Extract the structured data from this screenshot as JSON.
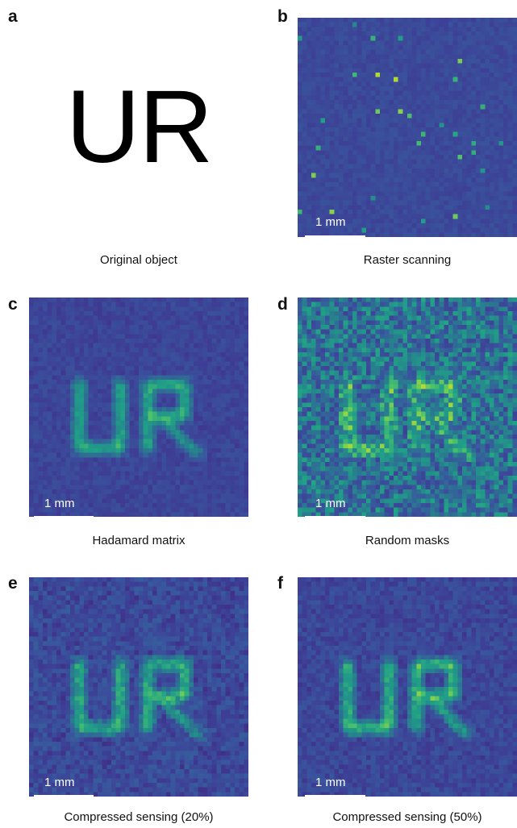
{
  "panels": [
    {
      "letter": "a",
      "caption": "Original object",
      "object_text": "UR"
    },
    {
      "letter": "b",
      "caption": "Raster scanning",
      "scale_label": "1 mm",
      "mode": "raster"
    },
    {
      "letter": "c",
      "caption": "Hadamard matrix",
      "scale_label": "1 mm",
      "mode": "hadamard"
    },
    {
      "letter": "d",
      "caption": "Random masks",
      "scale_label": "1 mm",
      "mode": "random"
    },
    {
      "letter": "e",
      "caption": "Compressed sensing (20%)",
      "scale_label": "1 mm",
      "mode": "cs20"
    },
    {
      "letter": "f",
      "caption": "Compressed sensing (50%)",
      "scale_label": "1 mm",
      "mode": "cs50"
    }
  ],
  "colors": {
    "background": "#3b4b9c",
    "letters": "#e9d63a",
    "letter_edge": "#3fc3a8"
  }
}
